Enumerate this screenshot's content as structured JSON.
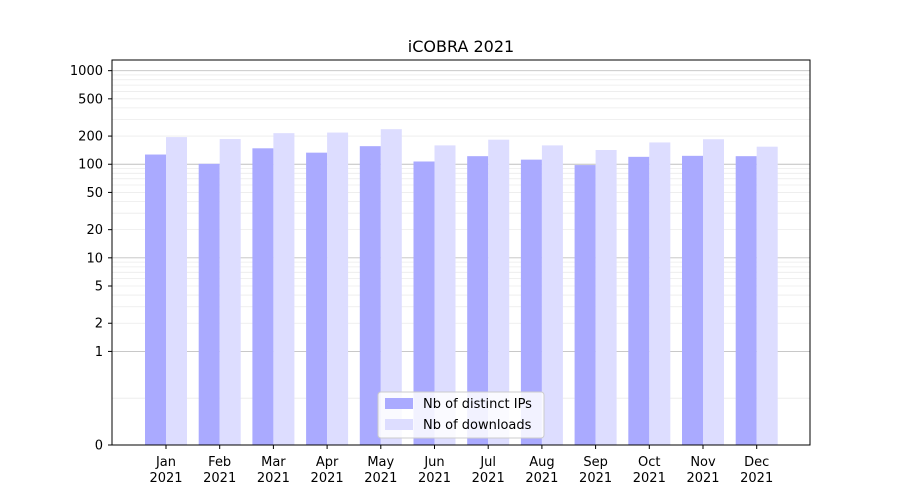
{
  "chart_data": {
    "type": "bar",
    "title": "iCOBRA 2021",
    "xlabel": "",
    "ylabel": "",
    "y_scale": "symlog",
    "ylim": [
      0,
      1300
    ],
    "grid": "horizontal (major and minor)",
    "legend_position": "lower center",
    "categories": [
      [
        "Jan",
        "2021"
      ],
      [
        "Feb",
        "2021"
      ],
      [
        "Mar",
        "2021"
      ],
      [
        "Apr",
        "2021"
      ],
      [
        "May",
        "2021"
      ],
      [
        "Jun",
        "2021"
      ],
      [
        "Jul",
        "2021"
      ],
      [
        "Aug",
        "2021"
      ],
      [
        "Sep",
        "2021"
      ],
      [
        "Oct",
        "2021"
      ],
      [
        "Nov",
        "2021"
      ],
      [
        "Dec",
        "2021"
      ]
    ],
    "y_ticks": [
      0,
      1,
      2,
      5,
      10,
      20,
      50,
      100,
      200,
      500,
      1000
    ],
    "series": [
      {
        "name": "Nb of distinct IPs",
        "color": "#aaaaff",
        "values": [
          127,
          101,
          148,
          133,
          156,
          107,
          122,
          112,
          98,
          120,
          123,
          122
        ]
      },
      {
        "name": "Nb of downloads",
        "color": "#ddddff",
        "values": [
          195,
          186,
          215,
          218,
          237,
          159,
          183,
          159,
          142,
          171,
          185,
          154
        ]
      }
    ]
  }
}
